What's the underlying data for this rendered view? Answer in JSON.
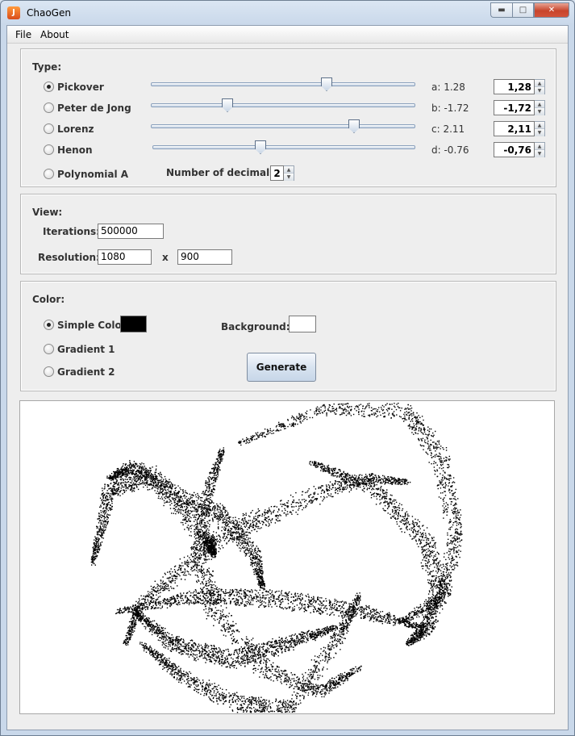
{
  "window": {
    "title": "ChaoGen"
  },
  "menu": {
    "file": "File",
    "about": "About"
  },
  "type_panel": {
    "heading": "Type:",
    "options": [
      {
        "label": "Pickover",
        "selected": true
      },
      {
        "label": "Peter de Jong",
        "selected": false
      },
      {
        "label": "Lorenz",
        "selected": false
      },
      {
        "label": "Henon",
        "selected": false
      },
      {
        "label": "Polynomial A",
        "selected": false
      }
    ],
    "params": [
      {
        "label": "a: 1.28",
        "value": "1,28",
        "slider": 0.67
      },
      {
        "label": "b: -1.72",
        "value": "-1,72",
        "slider": 0.29
      },
      {
        "label": "c: 2.11",
        "value": "2,11",
        "slider": 0.77
      },
      {
        "label": "d: -0.76",
        "value": "-0,76",
        "slider": 0.41
      }
    ],
    "decimals_label": "Number of decimals:",
    "decimals_value": "2"
  },
  "view_panel": {
    "heading": "View:",
    "iterations_label": "Iterations:",
    "iterations_value": "500000",
    "resolution_label": "Resolution:",
    "resolution_width": "1080",
    "resolution_x": "x",
    "resolution_height": "900"
  },
  "color_panel": {
    "heading": "Color:",
    "options": [
      {
        "label": "Simple Color",
        "selected": true
      },
      {
        "label": "Gradient 1",
        "selected": false
      },
      {
        "label": "Gradient 2",
        "selected": false
      }
    ],
    "simple_color": "#000000",
    "background_label": "Background:",
    "background_color": "#ffffff",
    "generate_label": "Generate"
  },
  "colors": {
    "titlebar": "#c9d8ea",
    "panel": "#eeeeee",
    "canvas": "#ffffff",
    "attractor": "#000000"
  },
  "icons": {
    "app": "java-app-icon",
    "minimize": "minimize-icon",
    "maximize": "maximize-icon",
    "close": "close-icon"
  }
}
